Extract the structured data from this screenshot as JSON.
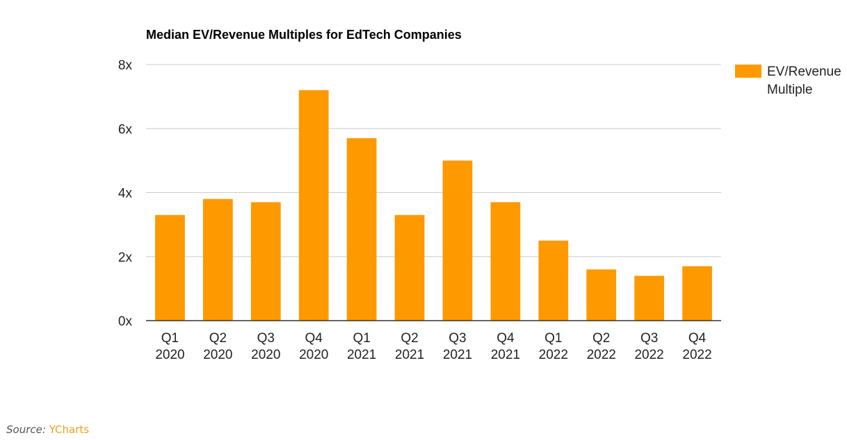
{
  "chart_data": {
    "type": "bar",
    "title": "Median EV/Revenue Multiples for EdTech Companies",
    "categories": [
      [
        "Q1",
        "2020"
      ],
      [
        "Q2",
        "2020"
      ],
      [
        "Q3",
        "2020"
      ],
      [
        "Q4",
        "2020"
      ],
      [
        "Q1",
        "2021"
      ],
      [
        "Q2",
        "2021"
      ],
      [
        "Q3",
        "2021"
      ],
      [
        "Q4",
        "2021"
      ],
      [
        "Q1",
        "2022"
      ],
      [
        "Q2",
        "2022"
      ],
      [
        "Q3",
        "2022"
      ],
      [
        "Q4",
        "2022"
      ]
    ],
    "series": [
      {
        "name": "EV/Revenue Multiple",
        "color": "#ff9900",
        "values": [
          3.3,
          3.8,
          3.7,
          7.2,
          5.7,
          3.3,
          5.0,
          3.7,
          2.5,
          1.6,
          1.4,
          1.7
        ]
      }
    ],
    "ylim": [
      0,
      8
    ],
    "yticks": [
      0,
      2,
      4,
      6,
      8
    ],
    "ytick_labels": [
      "0x",
      "2x",
      "4x",
      "6x",
      "8x"
    ],
    "grid": true,
    "legend_position": "right"
  },
  "legend": {
    "label": "EV/Revenue Multiple"
  },
  "source": {
    "prefix": "Source:",
    "name": "YCharts"
  }
}
